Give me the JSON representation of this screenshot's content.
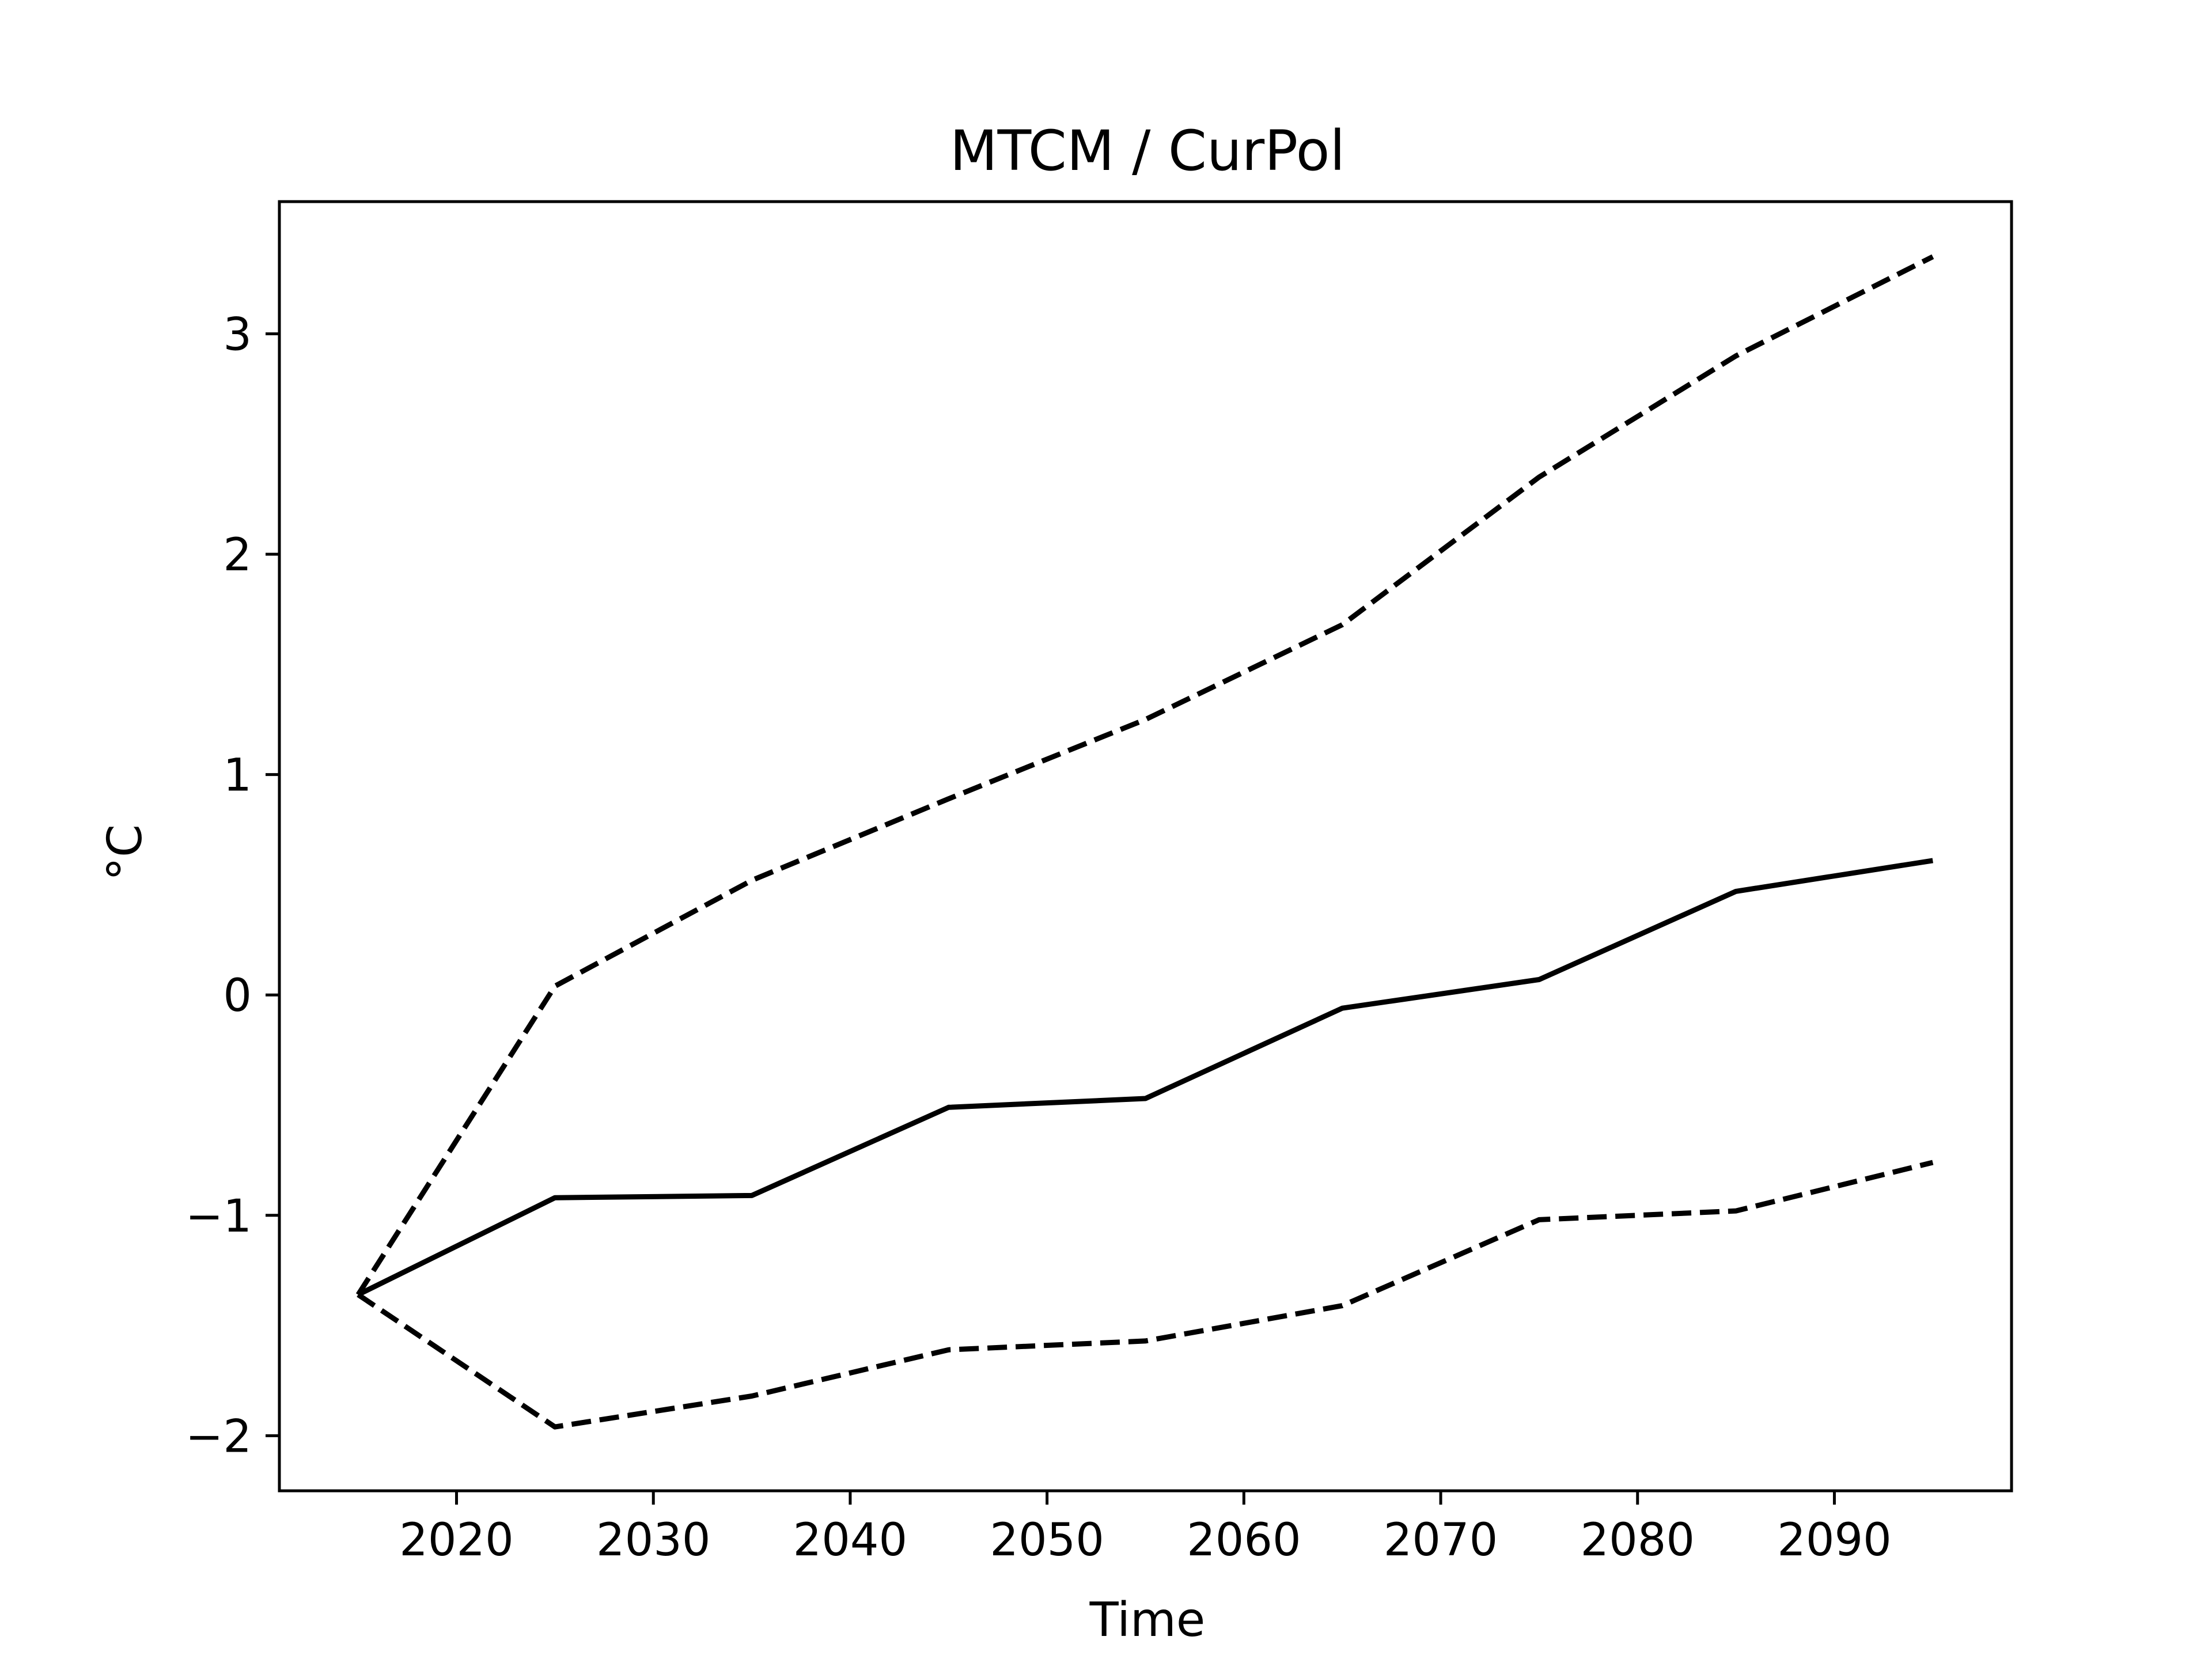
{
  "chart_data": {
    "type": "line",
    "title": "MTCM / CurPol",
    "xlabel": "Time",
    "ylabel": "°C",
    "xlim": [
      2011,
      2099
    ],
    "ylim": [
      -2.25,
      3.6
    ],
    "xticks": [
      2020,
      2030,
      2040,
      2050,
      2060,
      2070,
      2080,
      2090
    ],
    "xtick_labels": [
      "2020",
      "2030",
      "2040",
      "2050",
      "2060",
      "2070",
      "2080",
      "2090"
    ],
    "yticks": [
      -2,
      -1,
      0,
      1,
      2,
      3
    ],
    "ytick_labels": [
      "−2",
      "−1",
      "0",
      "1",
      "2",
      "3"
    ],
    "grid": false,
    "x": [
      2015,
      2025,
      2035,
      2045,
      2055,
      2065,
      2075,
      2085,
      2095
    ],
    "series": [
      {
        "style": "solid",
        "color": "#000000",
        "values": [
          -1.36,
          -0.92,
          -0.91,
          -0.51,
          -0.47,
          -0.06,
          0.07,
          0.47,
          0.61
        ]
      },
      {
        "style": "dashed",
        "color": "#000000",
        "values": [
          -1.36,
          0.04,
          0.52,
          0.89,
          1.25,
          1.68,
          2.35,
          2.9,
          3.35
        ]
      },
      {
        "style": "dashed",
        "color": "#000000",
        "values": [
          -1.36,
          -1.96,
          -1.82,
          -1.61,
          -1.57,
          -1.41,
          -1.02,
          -0.98,
          -0.76
        ]
      }
    ]
  }
}
